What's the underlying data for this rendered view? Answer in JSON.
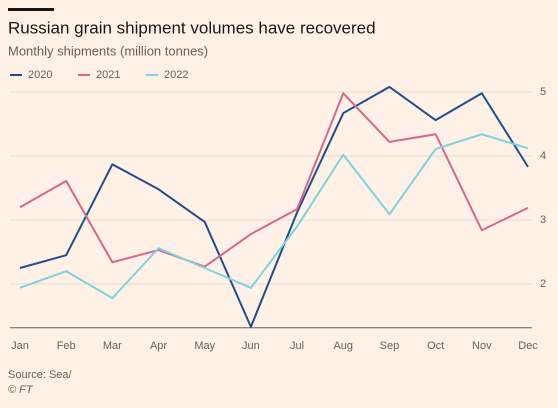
{
  "chart_data": {
    "type": "line",
    "title": "Russian grain shipment volumes have recovered",
    "subtitle": "Monthly shipments (million tonnes)",
    "categories": [
      "Jan",
      "Feb",
      "Mar",
      "Apr",
      "May",
      "Jun",
      "Jul",
      "Aug",
      "Sep",
      "Oct",
      "Nov",
      "Dec"
    ],
    "series": [
      {
        "name": "2020",
        "color": "#1d4f8f",
        "values": [
          2.25,
          2.45,
          3.87,
          3.48,
          2.97,
          1.33,
          3.12,
          4.67,
          5.08,
          4.56,
          4.98,
          3.83
        ]
      },
      {
        "name": "2021",
        "color": "#d9668c",
        "values": [
          3.2,
          3.61,
          2.34,
          2.53,
          2.27,
          2.78,
          3.17,
          4.98,
          4.22,
          4.34,
          2.84,
          3.19
        ]
      },
      {
        "name": "2022",
        "color": "#7fd3de",
        "values": [
          1.94,
          2.2,
          1.78,
          2.56,
          2.25,
          1.94,
          2.9,
          4.02,
          3.09,
          4.11,
          4.34,
          4.12
        ]
      }
    ],
    "ylim": [
      1.3,
      5.2
    ],
    "yticks": [
      2,
      3,
      4,
      5
    ],
    "grid": true,
    "source": "Source: Sea/",
    "credit": "© FT"
  }
}
